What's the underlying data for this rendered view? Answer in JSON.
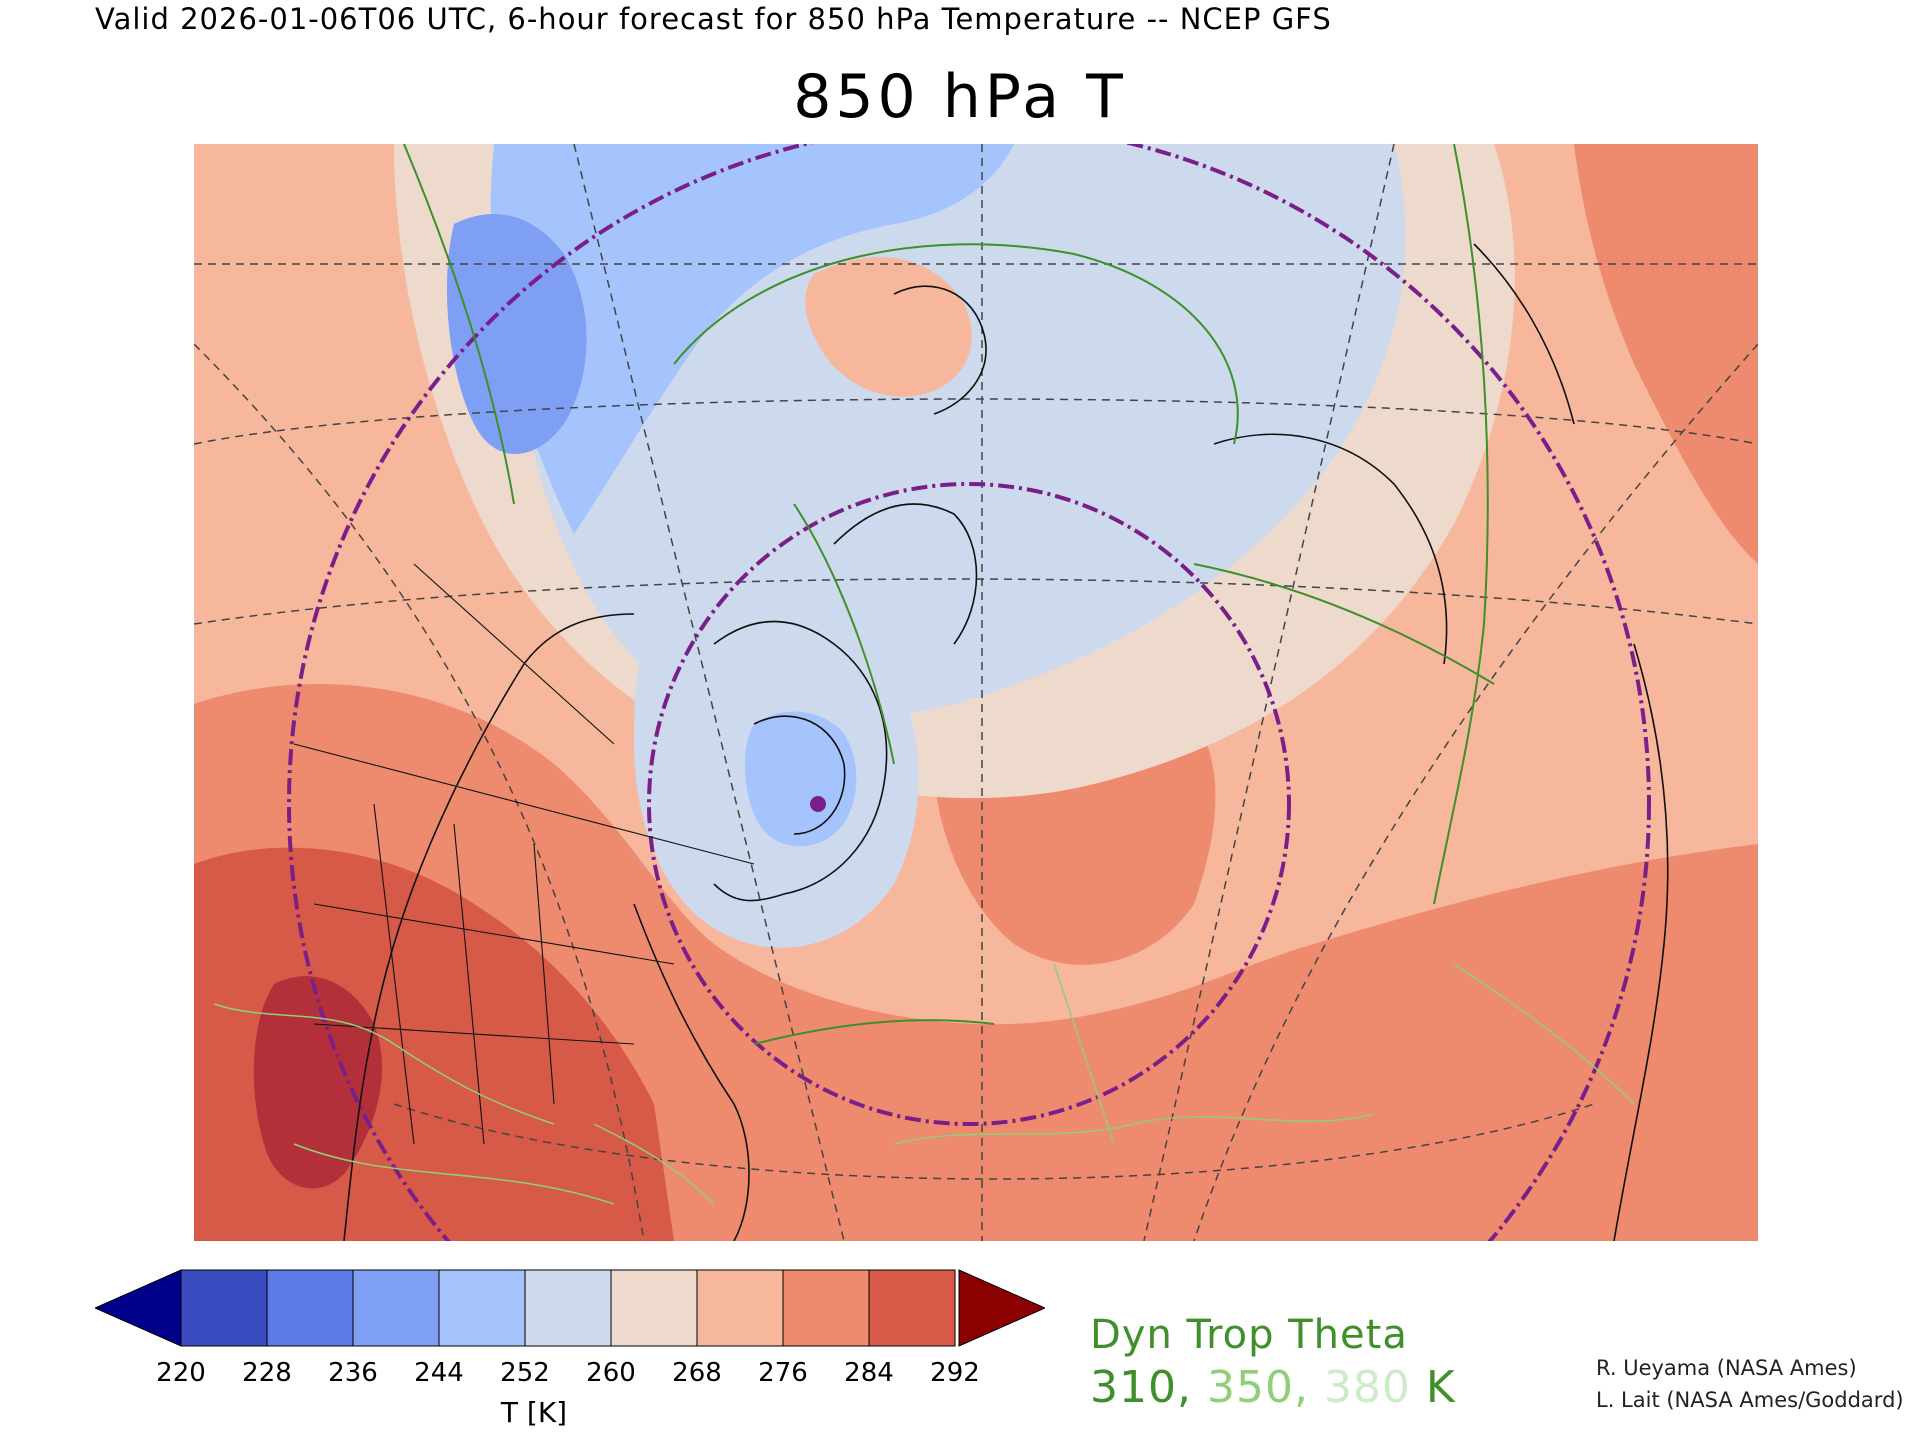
{
  "header": {
    "valid_line": "Valid 2026-01-06T06 UTC, 6-hour forecast for 850 hPa Temperature -- NCEP GFS",
    "title": "850 hPa T"
  },
  "colorbar": {
    "tick_labels": [
      "220",
      "228",
      "236",
      "244",
      "252",
      "260",
      "268",
      "276",
      "284",
      "292"
    ],
    "units_label": "T [K]",
    "colors": {
      "below": "#00008b",
      "bins": [
        "#3b4cc0",
        "#5b7ae5",
        "#7f9ff4",
        "#a5c3fd",
        "#cdd9ec",
        "#eed9cd",
        "#f6b79d",
        "#ee8a6d",
        "#d65a47"
      ],
      "above": "#8b0000"
    }
  },
  "legend": {
    "title": "Dyn Trop Theta",
    "values": [
      "310",
      "350",
      "380"
    ],
    "separator": ", ",
    "unit": " K",
    "colors": [
      "#3f8f2a",
      "#8fcf7a",
      "#cdebc8"
    ]
  },
  "credits": {
    "line1": "R. Ueyama (NASA Ames)",
    "line2": "L. Lait (NASA Ames/Goddard)"
  },
  "map": {
    "colors": {
      "coast": "#111111",
      "graticule": "#444444",
      "range_ring": "#7a1f8a",
      "marker": "#7a1f8a",
      "contour_310": "#3f8f2a",
      "contour_350": "#8fcf7a"
    }
  }
}
